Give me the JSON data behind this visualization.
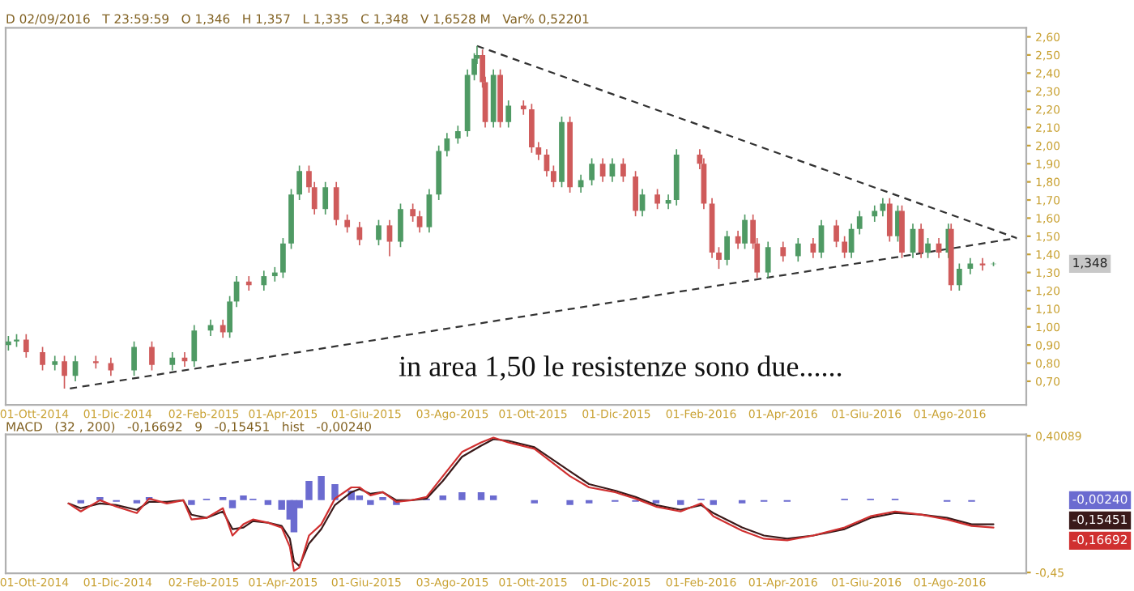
{
  "chart_data": [
    {
      "type": "candlestick",
      "x": [
        "2014-09-12",
        "2014-09-18",
        "2014-09-25",
        "2014-10-07",
        "2014-10-16",
        "2014-10-23",
        "2014-10-31",
        "2014-11-15",
        "2014-11-26",
        "2014-12-13",
        "2014-12-26",
        "2015-01-10",
        "2015-01-19",
        "2015-01-26",
        "2015-02-07",
        "2015-02-16",
        "2015-02-21",
        "2015-02-26",
        "2015-03-07",
        "2015-03-18",
        "2015-03-26",
        "2015-04-01",
        "2015-04-07",
        "2015-04-13",
        "2015-04-20",
        "2015-04-24",
        "2015-05-02",
        "2015-05-10",
        "2015-05-18",
        "2015-05-27",
        "2015-06-10",
        "2015-06-18",
        "2015-06-26",
        "2015-07-05",
        "2015-07-10",
        "2015-07-17",
        "2015-07-24",
        "2015-07-30",
        "2015-08-07",
        "2015-08-14",
        "2015-08-19",
        "2015-08-21",
        "2015-08-25",
        "2015-08-27",
        "2015-09-02",
        "2015-09-07",
        "2015-09-13",
        "2015-09-24",
        "2015-09-30",
        "2015-10-05",
        "2015-10-11",
        "2015-10-16",
        "2015-10-22",
        "2015-10-28",
        "2015-11-05",
        "2015-11-13",
        "2015-11-21",
        "2015-11-28",
        "2015-12-06",
        "2015-12-15",
        "2015-12-20",
        "2015-12-31",
        "2016-01-08",
        "2016-01-14",
        "2016-01-31",
        "2016-02-03",
        "2016-02-09",
        "2016-02-14",
        "2016-02-20",
        "2016-02-28",
        "2016-03-04",
        "2016-03-10",
        "2016-03-13",
        "2016-03-21",
        "2016-04-01",
        "2016-04-12",
        "2016-04-23",
        "2016-04-29",
        "2016-05-10",
        "2016-05-16",
        "2016-05-21",
        "2016-05-27",
        "2016-06-07",
        "2016-06-13",
        "2016-06-18",
        "2016-06-24",
        "2016-06-27",
        "2016-07-05",
        "2016-07-11",
        "2016-07-16",
        "2016-07-24",
        "2016-07-31",
        "2016-08-02",
        "2016-08-08",
        "2016-08-16",
        "2016-08-25",
        "2016-09-02"
      ],
      "ohlc": [
        [
          0.9,
          0.95,
          0.87,
          0.92
        ],
        [
          0.92,
          0.96,
          0.89,
          0.93
        ],
        [
          0.93,
          0.96,
          0.83,
          0.86
        ],
        [
          0.86,
          0.89,
          0.76,
          0.79
        ],
        [
          0.79,
          0.84,
          0.76,
          0.81
        ],
        [
          0.81,
          0.84,
          0.66,
          0.73
        ],
        [
          0.73,
          0.84,
          0.7,
          0.81
        ],
        [
          0.81,
          0.84,
          0.77,
          0.8
        ],
        [
          0.8,
          0.83,
          0.73,
          0.76
        ],
        [
          0.76,
          0.92,
          0.73,
          0.89
        ],
        [
          0.89,
          0.92,
          0.76,
          0.79
        ],
        [
          0.79,
          0.86,
          0.76,
          0.83
        ],
        [
          0.83,
          0.86,
          0.78,
          0.81
        ],
        [
          0.81,
          1.01,
          0.78,
          0.98
        ],
        [
          0.98,
          1.04,
          0.95,
          1.01
        ],
        [
          1.01,
          1.04,
          0.94,
          0.97
        ],
        [
          0.97,
          1.17,
          0.94,
          1.14
        ],
        [
          1.14,
          1.28,
          1.11,
          1.25
        ],
        [
          1.25,
          1.28,
          1.2,
          1.23
        ],
        [
          1.23,
          1.31,
          1.2,
          1.28
        ],
        [
          1.28,
          1.33,
          1.25,
          1.3
        ],
        [
          1.3,
          1.49,
          1.27,
          1.46
        ],
        [
          1.46,
          1.76,
          1.43,
          1.73
        ],
        [
          1.73,
          1.89,
          1.7,
          1.86
        ],
        [
          1.86,
          1.89,
          1.74,
          1.77
        ],
        [
          1.77,
          1.8,
          1.62,
          1.65
        ],
        [
          1.65,
          1.8,
          1.62,
          1.77
        ],
        [
          1.77,
          1.8,
          1.56,
          1.59
        ],
        [
          1.59,
          1.62,
          1.52,
          1.55
        ],
        [
          1.55,
          1.58,
          1.45,
          1.48
        ],
        [
          1.48,
          1.59,
          1.45,
          1.56
        ],
        [
          1.56,
          1.59,
          1.39,
          1.47
        ],
        [
          1.47,
          1.68,
          1.44,
          1.65
        ],
        [
          1.65,
          1.68,
          1.58,
          1.61
        ],
        [
          1.61,
          1.64,
          1.52,
          1.55
        ],
        [
          1.55,
          1.76,
          1.52,
          1.73
        ],
        [
          1.73,
          2.0,
          1.7,
          1.97
        ],
        [
          1.97,
          2.07,
          1.94,
          2.04
        ],
        [
          2.04,
          2.11,
          2.01,
          2.08
        ],
        [
          2.08,
          2.42,
          2.05,
          2.39
        ],
        [
          2.39,
          2.51,
          2.36,
          2.48
        ],
        [
          2.48,
          2.55,
          2.45,
          2.5
        ],
        [
          2.5,
          2.53,
          2.32,
          2.35
        ],
        [
          2.35,
          2.38,
          2.1,
          2.13
        ],
        [
          2.13,
          2.42,
          2.1,
          2.39
        ],
        [
          2.39,
          2.42,
          2.1,
          2.13
        ],
        [
          2.13,
          2.25,
          2.1,
          2.22
        ],
        [
          2.22,
          2.25,
          2.17,
          2.2
        ],
        [
          2.2,
          2.23,
          1.96,
          1.99
        ],
        [
          1.99,
          2.02,
          1.92,
          1.95
        ],
        [
          1.95,
          1.98,
          1.83,
          1.86
        ],
        [
          1.86,
          1.89,
          1.77,
          1.8
        ],
        [
          1.8,
          2.16,
          1.77,
          2.13
        ],
        [
          2.13,
          2.16,
          1.74,
          1.77
        ],
        [
          1.77,
          1.84,
          1.74,
          1.81
        ],
        [
          1.81,
          1.93,
          1.78,
          1.9
        ],
        [
          1.9,
          1.93,
          1.8,
          1.83
        ],
        [
          1.83,
          1.93,
          1.8,
          1.9
        ],
        [
          1.9,
          1.93,
          1.8,
          1.83
        ],
        [
          1.83,
          1.86,
          1.61,
          1.64
        ],
        [
          1.64,
          1.76,
          1.61,
          1.73
        ],
        [
          1.73,
          1.76,
          1.65,
          1.68
        ],
        [
          1.68,
          1.73,
          1.65,
          1.7
        ],
        [
          1.7,
          1.98,
          1.67,
          1.95
        ],
        [
          1.95,
          1.98,
          1.87,
          1.9
        ],
        [
          1.9,
          1.93,
          1.65,
          1.68
        ],
        [
          1.68,
          1.71,
          1.38,
          1.41
        ],
        [
          1.41,
          1.44,
          1.32,
          1.37
        ],
        [
          1.37,
          1.53,
          1.34,
          1.5
        ],
        [
          1.5,
          1.53,
          1.43,
          1.46
        ],
        [
          1.46,
          1.62,
          1.43,
          1.59
        ],
        [
          1.59,
          1.62,
          1.43,
          1.46
        ],
        [
          1.46,
          1.49,
          1.27,
          1.3
        ],
        [
          1.3,
          1.47,
          1.27,
          1.44
        ],
        [
          1.44,
          1.47,
          1.36,
          1.39
        ],
        [
          1.39,
          1.49,
          1.36,
          1.46
        ],
        [
          1.46,
          1.49,
          1.38,
          1.41
        ],
        [
          1.41,
          1.59,
          1.38,
          1.56
        ],
        [
          1.56,
          1.59,
          1.44,
          1.47
        ],
        [
          1.47,
          1.5,
          1.38,
          1.41
        ],
        [
          1.41,
          1.57,
          1.38,
          1.54
        ],
        [
          1.54,
          1.64,
          1.51,
          1.61
        ],
        [
          1.61,
          1.67,
          1.58,
          1.64
        ],
        [
          1.64,
          1.71,
          1.61,
          1.68
        ],
        [
          1.68,
          1.71,
          1.47,
          1.5
        ],
        [
          1.5,
          1.67,
          1.47,
          1.64
        ],
        [
          1.64,
          1.67,
          1.38,
          1.41
        ],
        [
          1.41,
          1.57,
          1.38,
          1.54
        ],
        [
          1.54,
          1.57,
          1.38,
          1.41
        ],
        [
          1.41,
          1.49,
          1.38,
          1.46
        ],
        [
          1.46,
          1.49,
          1.38,
          1.41
        ],
        [
          1.41,
          1.57,
          1.38,
          1.54
        ],
        [
          1.54,
          1.57,
          1.2,
          1.23
        ],
        [
          1.23,
          1.35,
          1.2,
          1.32
        ],
        [
          1.32,
          1.38,
          1.29,
          1.35
        ],
        [
          1.35,
          1.38,
          1.31,
          1.34
        ],
        [
          1.346,
          1.357,
          1.335,
          1.348
        ]
      ],
      "series": [
        {
          "type": "line",
          "color": "#333333",
          "line_style": "dashed",
          "x": [
            "2015-08-21",
            "2016-09-19"
          ],
          "values": [
            2.55,
            1.49
          ]
        },
        {
          "type": "line",
          "color": "#333333",
          "line_style": "dashed",
          "x": [
            "2014-10-27",
            "2016-09-19"
          ],
          "values": [
            0.66,
            1.49
          ]
        }
      ],
      "xlim": [
        "2014-09-10",
        "2016-09-26"
      ],
      "xticks": [
        {
          "value": "2014-10-01",
          "label": "01-Ott-2014"
        },
        {
          "value": "2014-12-01",
          "label": "01-Dic-2014"
        },
        {
          "value": "2015-02-02",
          "label": "02-Feb-2015"
        },
        {
          "value": "2015-04-01",
          "label": "01-Apr-2015"
        },
        {
          "value": "2015-06-01",
          "label": "01-Giu-2015"
        },
        {
          "value": "2015-08-03",
          "label": "03-Ago-2015"
        },
        {
          "value": "2015-10-01",
          "label": "01-Ott-2015"
        },
        {
          "value": "2015-12-01",
          "label": "01-Dic-2015"
        },
        {
          "value": "2016-02-01",
          "label": "01-Feb-2016"
        },
        {
          "value": "2016-04-01",
          "label": "01-Apr-2016"
        },
        {
          "value": "2016-06-01",
          "label": "01-Giu-2016"
        },
        {
          "value": "2016-08-01",
          "label": "01-Ago-2016"
        }
      ],
      "ylim": [
        0.57,
        2.65
      ],
      "yticks": [
        {
          "value": 0.7,
          "label": "0,70"
        },
        {
          "value": 0.8,
          "label": "0,80"
        },
        {
          "value": 0.9,
          "label": "0,90"
        },
        {
          "value": 1.0,
          "label": "1,00"
        },
        {
          "value": 1.1,
          "label": "1,10"
        },
        {
          "value": 1.2,
          "label": "1,20"
        },
        {
          "value": 1.3,
          "label": "1,30"
        },
        {
          "value": 1.4,
          "label": "1,40"
        },
        {
          "value": 1.5,
          "label": "1,50"
        },
        {
          "value": 1.6,
          "label": "1,60"
        },
        {
          "value": 1.7,
          "label": "1,70"
        },
        {
          "value": 1.8,
          "label": "1,80"
        },
        {
          "value": 1.9,
          "label": "1,90"
        },
        {
          "value": 2.0,
          "label": "2,00"
        },
        {
          "value": 2.1,
          "label": "2,10"
        },
        {
          "value": 2.2,
          "label": "2,20"
        },
        {
          "value": 2.3,
          "label": "2,30"
        },
        {
          "value": 2.4,
          "label": "2,40"
        },
        {
          "value": 2.5,
          "label": "2,50"
        },
        {
          "value": 2.6,
          "label": "2,60"
        }
      ],
      "annotations": [
        "D 02/09/2016   T 23:59:59   O 1,346   H 1,357   L 1,335   C 1,348   V 1,6528 M   Var% 0,52201",
        "in area 1,50 le resistenze sono due......",
        "1,348"
      ]
    },
    {
      "type": "bar",
      "series": [
        {
          "type": "bar",
          "color": "#6b6bd0",
          "x": [
            "2014-10-26",
            "2014-11-04",
            "2014-11-18",
            "2014-11-30",
            "2014-12-15",
            "2014-12-24",
            "2015-01-06",
            "2015-01-18",
            "2015-01-24",
            "2015-02-04",
            "2015-02-16",
            "2015-02-23",
            "2015-03-03",
            "2015-03-10",
            "2015-03-21",
            "2015-03-31",
            "2015-04-06",
            "2015-04-09",
            "2015-04-13",
            "2015-04-20",
            "2015-04-29",
            "2015-05-09",
            "2015-05-21",
            "2015-05-27",
            "2015-06-04",
            "2015-06-13",
            "2015-06-23",
            "2015-07-04",
            "2015-07-15",
            "2015-07-27",
            "2015-08-10",
            "2015-08-24",
            "2015-09-02",
            "2015-09-13",
            "2015-10-02",
            "2015-10-28",
            "2015-11-11",
            "2015-11-30",
            "2015-12-15",
            "2015-12-30",
            "2016-01-17",
            "2016-02-01",
            "2016-02-10",
            "2016-03-02",
            "2016-03-18",
            "2016-04-04",
            "2016-04-23",
            "2016-05-16",
            "2016-06-04",
            "2016-06-22",
            "2016-07-11",
            "2016-07-30",
            "2016-08-17",
            "2016-09-02"
          ],
          "values": [
            0.0,
            -0.02,
            0.02,
            -0.01,
            -0.02,
            0.02,
            null,
            0.0,
            -0.03,
            0.01,
            0.02,
            -0.05,
            0.03,
            0.01,
            -0.03,
            -0.06,
            -0.12,
            -0.2,
            -0.05,
            0.12,
            0.15,
            0.1,
            0.06,
            0.03,
            -0.03,
            0.02,
            -0.03,
            0.0,
            0.01,
            0.03,
            0.05,
            0.05,
            0.03,
            0.0,
            -0.02,
            -0.03,
            -0.02,
            -0.01,
            -0.01,
            -0.02,
            -0.03,
            0.01,
            -0.03,
            -0.02,
            -0.01,
            -0.01,
            0.0,
            0.01,
            0.01,
            0.01,
            0.0,
            -0.01,
            -0.01,
            0.0
          ]
        },
        {
          "type": "line",
          "color": "#3a1a1a",
          "x": [
            "2014-10-26",
            "2014-11-04",
            "2014-11-18",
            "2014-11-30",
            "2014-12-15",
            "2014-12-24",
            "2015-01-06",
            "2015-01-18",
            "2015-01-24",
            "2015-02-04",
            "2015-02-16",
            "2015-02-23",
            "2015-03-03",
            "2015-03-10",
            "2015-03-21",
            "2015-03-31",
            "2015-04-06",
            "2015-04-09",
            "2015-04-13",
            "2015-04-20",
            "2015-04-29",
            "2015-05-09",
            "2015-05-21",
            "2015-05-27",
            "2015-06-04",
            "2015-06-13",
            "2015-06-23",
            "2015-07-04",
            "2015-07-15",
            "2015-07-27",
            "2015-08-10",
            "2015-08-24",
            "2015-09-02",
            "2015-09-13",
            "2015-10-02",
            "2015-10-28",
            "2015-11-11",
            "2015-11-30",
            "2015-12-15",
            "2015-12-30",
            "2016-01-17",
            "2016-02-01",
            "2016-02-10",
            "2016-03-02",
            "2016-03-18",
            "2016-04-04",
            "2016-04-23",
            "2016-05-16",
            "2016-06-04",
            "2016-06-22",
            "2016-07-11",
            "2016-07-30",
            "2016-08-17",
            "2016-09-02"
          ],
          "values": [
            -0.02,
            -0.05,
            -0.02,
            -0.03,
            -0.06,
            -0.01,
            -0.01,
            0.0,
            -0.09,
            -0.11,
            -0.07,
            -0.18,
            -0.17,
            -0.13,
            -0.14,
            -0.16,
            -0.24,
            -0.38,
            -0.41,
            -0.27,
            -0.18,
            -0.03,
            0.05,
            0.07,
            0.04,
            0.05,
            0.0,
            0.0,
            0.01,
            0.12,
            0.27,
            0.34,
            0.38,
            0.37,
            0.33,
            0.18,
            0.1,
            0.06,
            0.02,
            -0.03,
            -0.06,
            -0.03,
            -0.08,
            -0.17,
            -0.22,
            -0.24,
            -0.22,
            -0.18,
            -0.11,
            -0.08,
            -0.09,
            -0.11,
            -0.15,
            -0.15
          ]
        },
        {
          "type": "line",
          "color": "#d03030",
          "x": [
            "2014-10-26",
            "2014-11-04",
            "2014-11-18",
            "2014-11-30",
            "2014-12-15",
            "2014-12-24",
            "2015-01-06",
            "2015-01-18",
            "2015-01-24",
            "2015-02-04",
            "2015-02-16",
            "2015-02-23",
            "2015-03-03",
            "2015-03-10",
            "2015-03-21",
            "2015-03-31",
            "2015-04-06",
            "2015-04-09",
            "2015-04-13",
            "2015-04-20",
            "2015-04-29",
            "2015-05-09",
            "2015-05-21",
            "2015-05-27",
            "2015-06-04",
            "2015-06-13",
            "2015-06-23",
            "2015-07-04",
            "2015-07-15",
            "2015-07-27",
            "2015-08-10",
            "2015-08-24",
            "2015-09-02",
            "2015-09-13",
            "2015-10-02",
            "2015-10-28",
            "2015-11-11",
            "2015-11-30",
            "2015-12-15",
            "2015-12-30",
            "2016-01-17",
            "2016-02-01",
            "2016-02-10",
            "2016-03-02",
            "2016-03-18",
            "2016-04-04",
            "2016-04-23",
            "2016-05-16",
            "2016-06-04",
            "2016-06-22",
            "2016-07-11",
            "2016-07-30",
            "2016-08-17",
            "2016-09-02"
          ],
          "values": [
            -0.02,
            -0.07,
            0.0,
            -0.04,
            -0.08,
            0.01,
            -0.02,
            0.0,
            -0.12,
            -0.11,
            -0.05,
            -0.22,
            -0.15,
            -0.12,
            -0.14,
            -0.17,
            -0.29,
            -0.44,
            -0.42,
            -0.22,
            -0.15,
            0.01,
            0.08,
            0.08,
            0.03,
            0.05,
            -0.01,
            0.0,
            0.02,
            0.15,
            0.3,
            0.36,
            0.39,
            0.36,
            0.32,
            0.15,
            0.08,
            0.05,
            0.01,
            -0.04,
            -0.07,
            -0.02,
            -0.1,
            -0.19,
            -0.24,
            -0.25,
            -0.22,
            -0.17,
            -0.1,
            -0.07,
            -0.09,
            -0.12,
            -0.16,
            -0.17
          ]
        }
      ],
      "xlim": [
        "2014-09-10",
        "2016-09-26"
      ],
      "xticks": [
        {
          "value": "2014-10-01",
          "label": "01-Ott-2014"
        },
        {
          "value": "2014-12-01",
          "label": "01-Dic-2014"
        },
        {
          "value": "2015-02-02",
          "label": "02-Feb-2015"
        },
        {
          "value": "2015-04-01",
          "label": "01-Apr-2015"
        },
        {
          "value": "2015-06-01",
          "label": "01-Giu-2015"
        },
        {
          "value": "2015-08-03",
          "label": "03-Ago-2015"
        },
        {
          "value": "2015-10-01",
          "label": "01-Ott-2015"
        },
        {
          "value": "2015-12-01",
          "label": "01-Dic-2015"
        },
        {
          "value": "2016-02-01",
          "label": "01-Feb-2016"
        },
        {
          "value": "2016-04-01",
          "label": "01-Apr-2016"
        },
        {
          "value": "2016-06-01",
          "label": "01-Giu-2016"
        },
        {
          "value": "2016-08-01",
          "label": "01-Ago-2016"
        }
      ],
      "ylim": [
        -0.455,
        0.41
      ],
      "yticks": [
        {
          "value": -0.45,
          "label": "-0,45"
        },
        {
          "value": 0.40089,
          "label": "0,40089"
        }
      ],
      "annotations": [
        "MACD   (32 , 200)   -0,16692   9   -0,15451   hist   -0,00240",
        "-0,00240",
        "-0,15451",
        "-0,16692"
      ]
    }
  ]
}
